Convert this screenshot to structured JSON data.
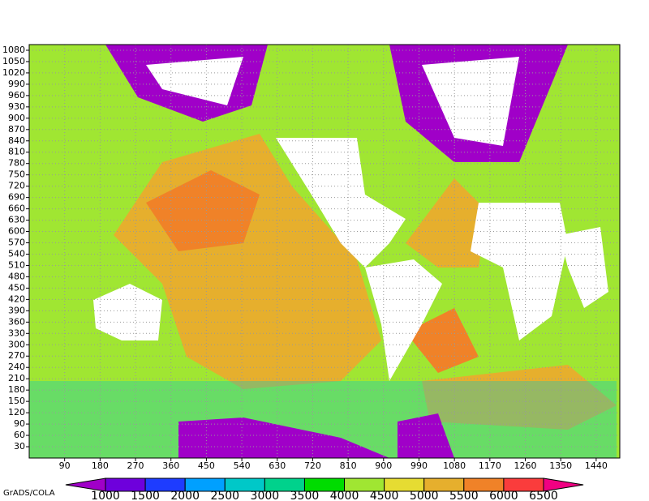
{
  "chart_data": {
    "type": "contour-map",
    "xlim": [
      0,
      1500
    ],
    "ylim": [
      0,
      1095
    ],
    "xticks": [
      90,
      180,
      270,
      360,
      450,
      540,
      630,
      720,
      810,
      900,
      990,
      1080,
      1170,
      1260,
      1350,
      1440
    ],
    "yticks": [
      30,
      60,
      90,
      120,
      150,
      180,
      210,
      240,
      270,
      300,
      330,
      360,
      390,
      420,
      450,
      480,
      510,
      540,
      570,
      600,
      630,
      660,
      690,
      720,
      750,
      780,
      810,
      840,
      870,
      900,
      930,
      960,
      990,
      1020,
      1050,
      1080
    ],
    "grid": true,
    "levels": [
      1000,
      1500,
      2000,
      2500,
      3000,
      3500,
      4000,
      4500,
      5000,
      5500,
      6000,
      6500
    ],
    "colors": [
      "#a000c8",
      "#6e00dc",
      "#1e3cff",
      "#00a0ff",
      "#00c8c8",
      "#00d28c",
      "#00dc00",
      "#a0e632",
      "#e6dc32",
      "#e6af2d",
      "#f08228",
      "#fa3c3c",
      "#f00082"
    ],
    "credit": "GrADS/COLA"
  }
}
